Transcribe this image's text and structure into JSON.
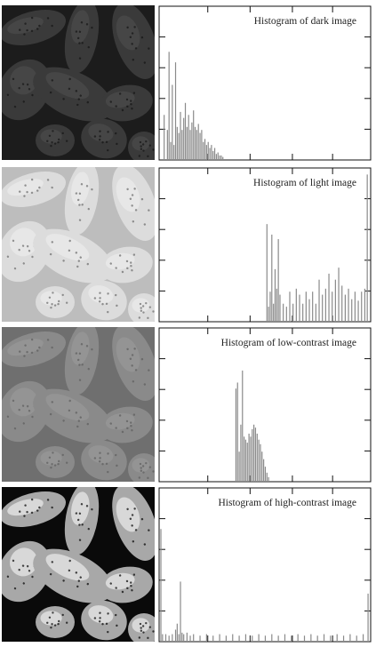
{
  "chart_data": [
    {
      "type": "bar",
      "title": "Histogram of dark image",
      "xlabel": "",
      "ylabel": "",
      "xlim": [
        0,
        255
      ],
      "grid": false,
      "histogram": [
        [
          2,
          0.0
        ],
        [
          4,
          0.3
        ],
        [
          6,
          0.0
        ],
        [
          8,
          0.2
        ],
        [
          10,
          0.72
        ],
        [
          12,
          0.12
        ],
        [
          14,
          0.5
        ],
        [
          16,
          0.1
        ],
        [
          18,
          0.65
        ],
        [
          20,
          0.22
        ],
        [
          22,
          0.18
        ],
        [
          24,
          0.32
        ],
        [
          26,
          0.2
        ],
        [
          28,
          0.28
        ],
        [
          30,
          0.38
        ],
        [
          32,
          0.22
        ],
        [
          34,
          0.3
        ],
        [
          36,
          0.2
        ],
        [
          38,
          0.25
        ],
        [
          40,
          0.33
        ],
        [
          42,
          0.22
        ],
        [
          44,
          0.2
        ],
        [
          46,
          0.24
        ],
        [
          48,
          0.18
        ],
        [
          50,
          0.2
        ],
        [
          52,
          0.12
        ],
        [
          54,
          0.14
        ],
        [
          56,
          0.1
        ],
        [
          58,
          0.12
        ],
        [
          60,
          0.08
        ],
        [
          62,
          0.1
        ],
        [
          64,
          0.06
        ],
        [
          66,
          0.08
        ],
        [
          68,
          0.04
        ],
        [
          70,
          0.05
        ],
        [
          72,
          0.03
        ],
        [
          74,
          0.03
        ],
        [
          76,
          0.02
        ]
      ]
    },
    {
      "type": "bar",
      "title": "Histogram of light image",
      "xlabel": "",
      "ylabel": "",
      "xlim": [
        0,
        255
      ],
      "grid": false,
      "histogram": [
        [
          128,
          0.0
        ],
        [
          130,
          0.65
        ],
        [
          132,
          0.1
        ],
        [
          134,
          0.2
        ],
        [
          136,
          0.58
        ],
        [
          138,
          0.12
        ],
        [
          140,
          0.35
        ],
        [
          142,
          0.22
        ],
        [
          144,
          0.55
        ],
        [
          146,
          0.18
        ],
        [
          150,
          0.12
        ],
        [
          154,
          0.1
        ],
        [
          158,
          0.2
        ],
        [
          162,
          0.12
        ],
        [
          166,
          0.22
        ],
        [
          170,
          0.18
        ],
        [
          174,
          0.12
        ],
        [
          178,
          0.2
        ],
        [
          182,
          0.15
        ],
        [
          186,
          0.2
        ],
        [
          190,
          0.12
        ],
        [
          194,
          0.28
        ],
        [
          198,
          0.18
        ],
        [
          202,
          0.22
        ],
        [
          206,
          0.32
        ],
        [
          210,
          0.2
        ],
        [
          214,
          0.28
        ],
        [
          218,
          0.36
        ],
        [
          222,
          0.24
        ],
        [
          226,
          0.18
        ],
        [
          230,
          0.22
        ],
        [
          234,
          0.15
        ],
        [
          238,
          0.2
        ],
        [
          242,
          0.14
        ],
        [
          246,
          0.2
        ],
        [
          250,
          0.22
        ],
        [
          253,
          0.98
        ]
      ]
    },
    {
      "type": "bar",
      "title": "Histogram of low-contrast image",
      "xlabel": "",
      "ylabel": "",
      "xlim": [
        0,
        255
      ],
      "grid": false,
      "histogram": [
        [
          90,
          0.0
        ],
        [
          92,
          0.62
        ],
        [
          94,
          0.66
        ],
        [
          96,
          0.2
        ],
        [
          98,
          0.38
        ],
        [
          100,
          0.74
        ],
        [
          102,
          0.3
        ],
        [
          104,
          0.28
        ],
        [
          106,
          0.26
        ],
        [
          108,
          0.32
        ],
        [
          110,
          0.3
        ],
        [
          112,
          0.35
        ],
        [
          114,
          0.38
        ],
        [
          116,
          0.36
        ],
        [
          118,
          0.32
        ],
        [
          120,
          0.28
        ],
        [
          122,
          0.25
        ],
        [
          124,
          0.2
        ],
        [
          126,
          0.15
        ],
        [
          128,
          0.1
        ],
        [
          130,
          0.06
        ],
        [
          132,
          0.03
        ]
      ]
    },
    {
      "type": "bar",
      "title": "Histogram of high-contrast image",
      "xlabel": "",
      "ylabel": "",
      "xlim": [
        0,
        255
      ],
      "grid": false,
      "histogram": [
        [
          0,
          0.75
        ],
        [
          2,
          0.05
        ],
        [
          6,
          0.05
        ],
        [
          10,
          0.04
        ],
        [
          14,
          0.05
        ],
        [
          18,
          0.08
        ],
        [
          20,
          0.12
        ],
        [
          22,
          0.05
        ],
        [
          24,
          0.4
        ],
        [
          26,
          0.06
        ],
        [
          28,
          0.05
        ],
        [
          32,
          0.06
        ],
        [
          36,
          0.04
        ],
        [
          40,
          0.05
        ],
        [
          48,
          0.04
        ],
        [
          56,
          0.05
        ],
        [
          64,
          0.04
        ],
        [
          72,
          0.05
        ],
        [
          80,
          0.04
        ],
        [
          88,
          0.05
        ],
        [
          96,
          0.04
        ],
        [
          104,
          0.05
        ],
        [
          112,
          0.04
        ],
        [
          120,
          0.05
        ],
        [
          128,
          0.04
        ],
        [
          136,
          0.05
        ],
        [
          144,
          0.04
        ],
        [
          152,
          0.05
        ],
        [
          160,
          0.04
        ],
        [
          168,
          0.05
        ],
        [
          176,
          0.04
        ],
        [
          184,
          0.05
        ],
        [
          192,
          0.04
        ],
        [
          200,
          0.05
        ],
        [
          208,
          0.04
        ],
        [
          216,
          0.05
        ],
        [
          224,
          0.04
        ],
        [
          232,
          0.05
        ],
        [
          240,
          0.04
        ],
        [
          248,
          0.05
        ],
        [
          254,
          0.32
        ]
      ]
    }
  ],
  "images": [
    {
      "name": "dark-image",
      "bg": "#1c1c1c",
      "grain": "#3a3a3a",
      "hi": "#505050",
      "dots": "#141414"
    },
    {
      "name": "light-image",
      "bg": "#bdbdbd",
      "grain": "#dcdcdc",
      "hi": "#f0f0f0",
      "dots": "#6a6a6a"
    },
    {
      "name": "low-contrast-image",
      "bg": "#6f6f6f",
      "grain": "#8a8a8a",
      "hi": "#9c9c9c",
      "dots": "#5c5c5c"
    },
    {
      "name": "high-contrast-image",
      "bg": "#0a0a0a",
      "grain": "#a8a8a8",
      "hi": "#ffffff",
      "dots": "#000000"
    }
  ]
}
